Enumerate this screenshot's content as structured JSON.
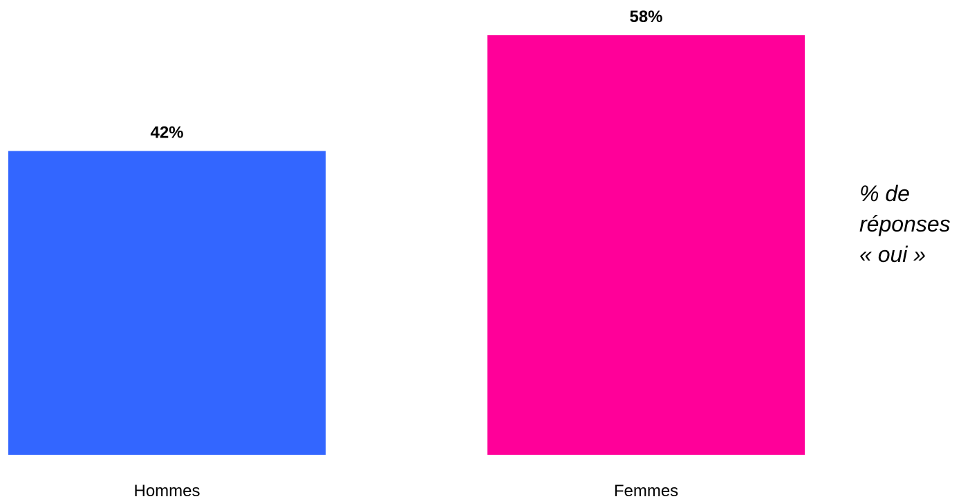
{
  "chart_data": {
    "type": "bar",
    "categories": [
      "Hommes",
      "Femmes"
    ],
    "values": [
      42,
      58
    ],
    "value_labels": [
      "42%",
      "58%"
    ],
    "colors": [
      "#3366FF",
      "#FF0099"
    ],
    "ylim": [
      0,
      58
    ],
    "grid": false,
    "legend": "none",
    "annotation": [
      "% de",
      "réponses",
      "« oui »"
    ]
  }
}
